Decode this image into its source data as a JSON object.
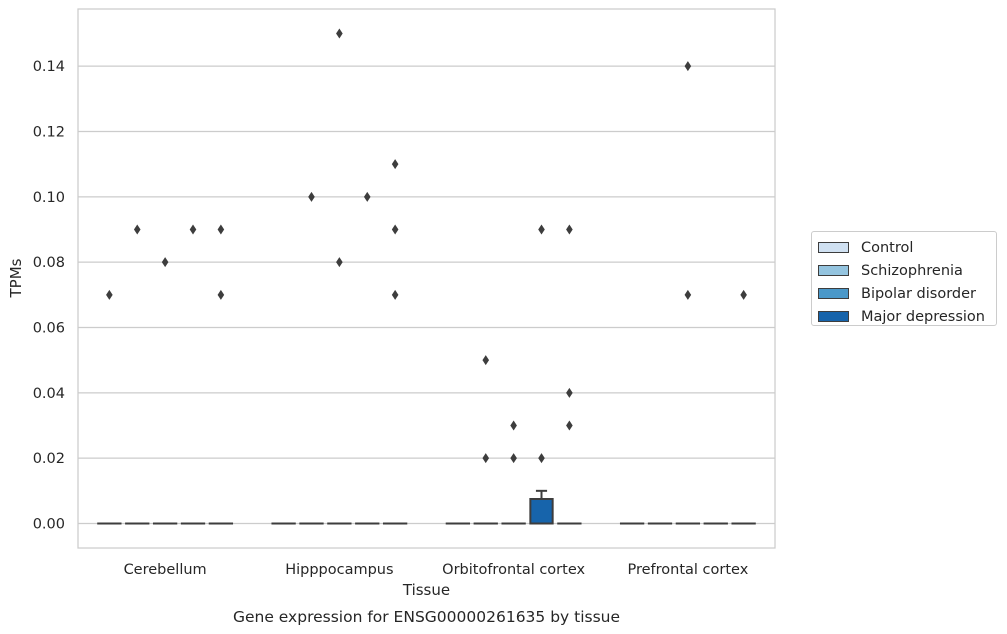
{
  "chart_data": {
    "type": "box",
    "title": "Gene expression for ENSG00000261635 by tissue",
    "xlabel": "Tissue",
    "ylabel": "TPMs",
    "categories": [
      "Cerebellum",
      "Hipppocampus",
      "Orbitofrontal cortex",
      "Prefrontal cortex"
    ],
    "ylim": [
      -0.0075,
      0.1575
    ],
    "yticks": [
      0.0,
      0.02,
      0.04,
      0.06,
      0.08,
      0.1,
      0.12,
      0.14
    ],
    "ytick_labels": [
      "0.00",
      "0.02",
      "0.04",
      "0.06",
      "0.08",
      "0.10",
      "0.12",
      "0.14"
    ],
    "grid": true,
    "legend_position": "right",
    "series": [
      {
        "name": "Control",
        "color": "#d0e1f2",
        "boxes": [
          {
            "q1": 0,
            "median": 0,
            "q3": 0,
            "whisker_low": 0,
            "whisker_high": 0,
            "outliers": [
              0.07
            ]
          },
          {
            "q1": 0,
            "median": 0,
            "q3": 0,
            "whisker_low": 0,
            "whisker_high": 0,
            "outliers": []
          },
          {
            "q1": 0,
            "median": 0,
            "q3": 0,
            "whisker_low": 0,
            "whisker_high": 0,
            "outliers": []
          },
          {
            "q1": 0,
            "median": 0,
            "q3": 0,
            "whisker_low": 0,
            "whisker_high": 0,
            "outliers": []
          }
        ]
      },
      {
        "name": "Schizophrenia",
        "color": "#94c4df",
        "boxes": [
          {
            "q1": 0,
            "median": 0,
            "q3": 0,
            "whisker_low": 0,
            "whisker_high": 0,
            "outliers": [
              0.09
            ]
          },
          {
            "q1": 0,
            "median": 0,
            "q3": 0,
            "whisker_low": 0,
            "whisker_high": 0,
            "outliers": [
              0.1
            ]
          },
          {
            "q1": 0,
            "median": 0,
            "q3": 0,
            "whisker_low": 0,
            "whisker_high": 0,
            "outliers": [
              0.05,
              0.02
            ]
          },
          {
            "q1": 0,
            "median": 0,
            "q3": 0,
            "whisker_low": 0,
            "whisker_high": 0,
            "outliers": []
          }
        ]
      },
      {
        "name": "Bipolar disorder",
        "color": "#4a98c9",
        "boxes": [
          {
            "q1": 0,
            "median": 0,
            "q3": 0,
            "whisker_low": 0,
            "whisker_high": 0,
            "outliers": [
              0.08
            ]
          },
          {
            "q1": 0,
            "median": 0,
            "q3": 0,
            "whisker_low": 0,
            "whisker_high": 0,
            "outliers": [
              0.15,
              0.08
            ]
          },
          {
            "q1": 0,
            "median": 0,
            "q3": 0,
            "whisker_low": 0,
            "whisker_high": 0,
            "outliers": [
              0.03,
              0.02
            ]
          },
          {
            "q1": 0,
            "median": 0,
            "q3": 0,
            "whisker_low": 0,
            "whisker_high": 0,
            "outliers": [
              0.14,
              0.07
            ]
          }
        ]
      },
      {
        "name": "Major depression",
        "color": "#1764ab",
        "boxes": [
          {
            "q1": 0,
            "median": 0,
            "q3": 0,
            "whisker_low": 0,
            "whisker_high": 0,
            "outliers": [
              0.09
            ]
          },
          {
            "q1": 0,
            "median": 0,
            "q3": 0,
            "whisker_low": 0,
            "whisker_high": 0,
            "outliers": [
              0.1
            ]
          },
          {
            "q1": 0,
            "median": 0,
            "q3": 0.0075,
            "whisker_low": 0,
            "whisker_high": 0.01,
            "outliers": [
              0.09,
              0.02
            ]
          },
          {
            "q1": 0,
            "median": 0,
            "q3": 0,
            "whisker_low": 0,
            "whisker_high": 0,
            "outliers": []
          }
        ]
      },
      {
        "name": "",
        "color": "#08306b",
        "boxes": [
          {
            "q1": 0,
            "median": 0,
            "q3": 0,
            "whisker_low": 0,
            "whisker_high": 0,
            "outliers": [
              0.09,
              0.07
            ]
          },
          {
            "q1": 0,
            "median": 0,
            "q3": 0,
            "whisker_low": 0,
            "whisker_high": 0,
            "outliers": [
              0.11,
              0.09,
              0.07
            ]
          },
          {
            "q1": 0,
            "median": 0,
            "q3": 0,
            "whisker_low": 0,
            "whisker_high": 0,
            "outliers": [
              0.09,
              0.04,
              0.03
            ]
          },
          {
            "q1": 0,
            "median": 0,
            "q3": 0,
            "whisker_low": 0,
            "whisker_high": 0,
            "outliers": [
              0.07
            ]
          }
        ]
      }
    ]
  },
  "legend": {
    "items": [
      {
        "label": "Control",
        "color": "#d0e1f2"
      },
      {
        "label": "Schizophrenia",
        "color": "#94c4df"
      },
      {
        "label": "Bipolar disorder",
        "color": "#4a98c9"
      },
      {
        "label": "Major depression",
        "color": "#1764ab"
      }
    ]
  }
}
